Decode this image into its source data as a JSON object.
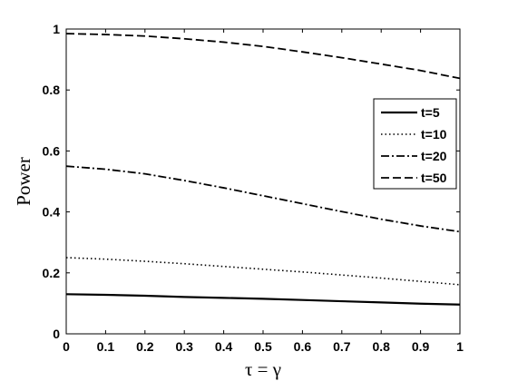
{
  "chart_data": {
    "type": "line",
    "xlabel": "τ = γ",
    "ylabel": "Power",
    "xlim": [
      0,
      1
    ],
    "ylim": [
      0,
      1
    ],
    "xticks": [
      0,
      0.1,
      0.2,
      0.3,
      0.4,
      0.5,
      0.6,
      0.7,
      0.8,
      0.9,
      1
    ],
    "xtick_labels": [
      "0",
      "0.1",
      "0.2",
      "0.3",
      "0.4",
      "0.5",
      "0.6",
      "0.7",
      "0.8",
      "0.9",
      "1"
    ],
    "yticks": [
      0,
      0.2,
      0.4,
      0.6,
      0.8,
      1
    ],
    "ytick_labels": [
      "0",
      "0.2",
      "0.4",
      "0.6",
      "0.8",
      "1"
    ],
    "grid": false,
    "legend_position": "right",
    "x": [
      0,
      0.1,
      0.2,
      0.3,
      0.4,
      0.5,
      0.6,
      0.7,
      0.8,
      0.9,
      1
    ],
    "series": [
      {
        "name": "t=5",
        "style": "solid",
        "values": [
          0.13,
          0.128,
          0.125,
          0.121,
          0.118,
          0.115,
          0.111,
          0.107,
          0.103,
          0.099,
          0.096
        ]
      },
      {
        "name": "t=10",
        "style": "dotted",
        "values": [
          0.25,
          0.245,
          0.238,
          0.23,
          0.221,
          0.212,
          0.203,
          0.193,
          0.183,
          0.172,
          0.161
        ]
      },
      {
        "name": "t=20",
        "style": "dashdot",
        "values": [
          0.55,
          0.54,
          0.525,
          0.503,
          0.479,
          0.453,
          0.427,
          0.401,
          0.376,
          0.354,
          0.335
        ]
      },
      {
        "name": "t=50",
        "style": "dashed",
        "values": [
          0.985,
          0.982,
          0.977,
          0.968,
          0.957,
          0.943,
          0.925,
          0.906,
          0.885,
          0.864,
          0.838
        ]
      }
    ]
  }
}
